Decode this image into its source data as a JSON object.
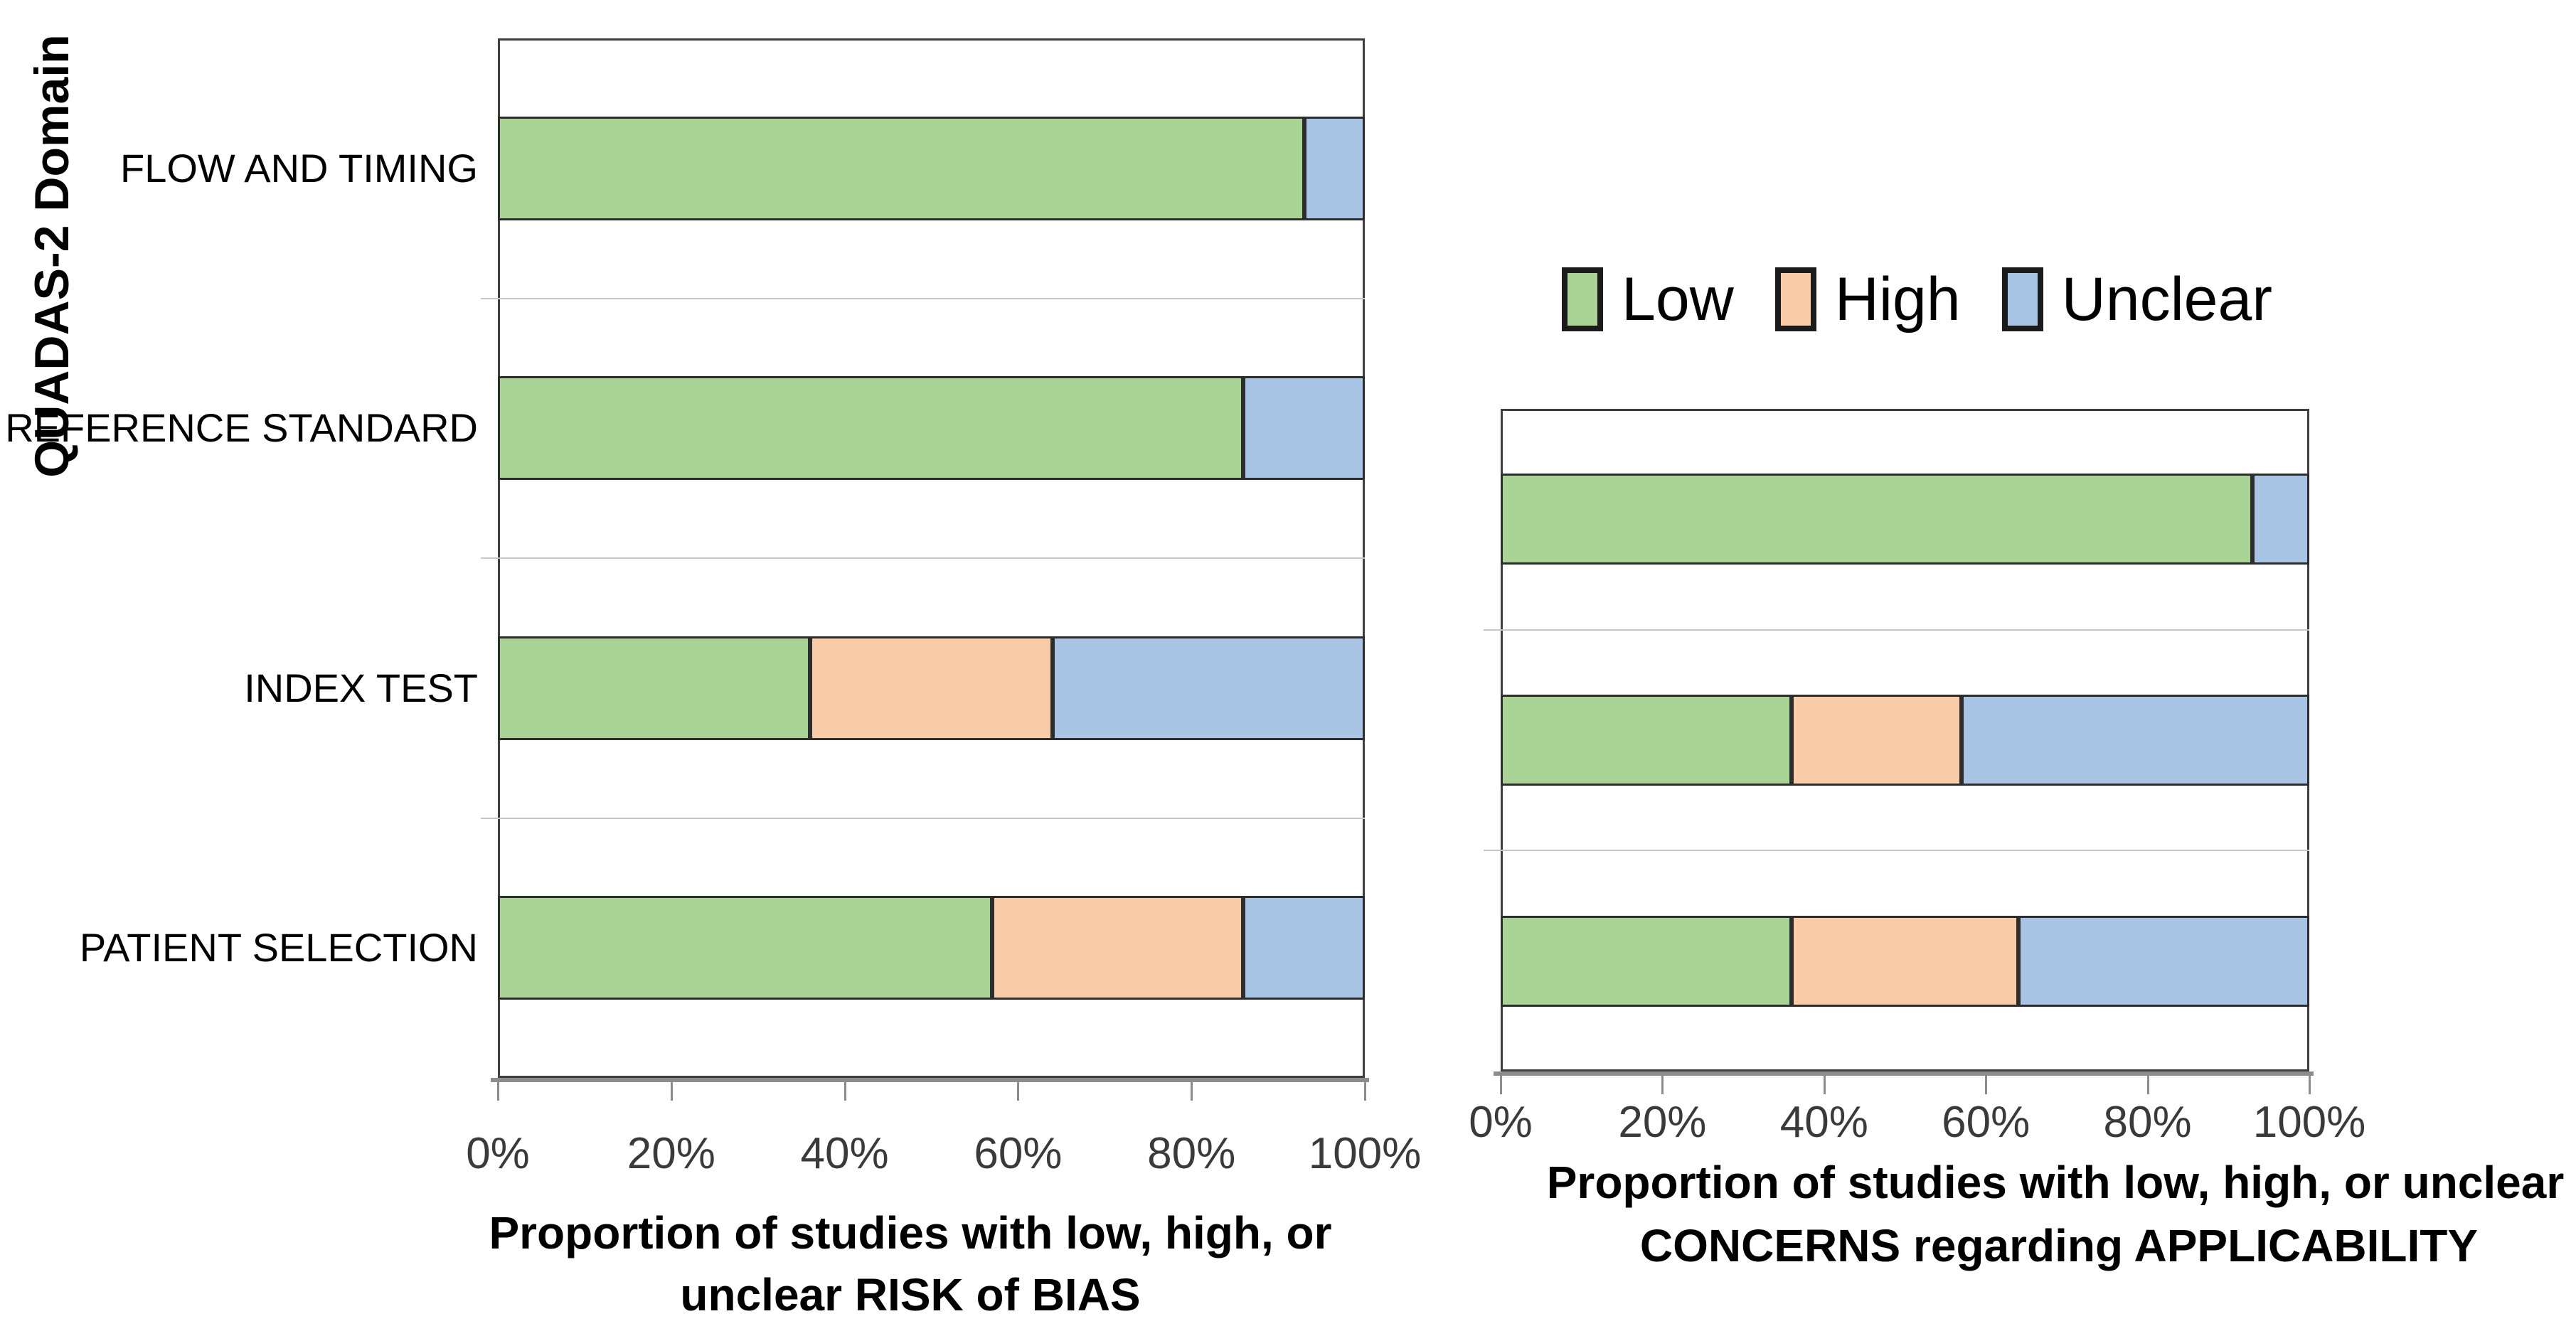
{
  "legend": {
    "items": [
      {
        "name": "Low",
        "label": "Low",
        "color": "#A9D395"
      },
      {
        "name": "High",
        "label": "High",
        "color": "#F9CBA6"
      },
      {
        "name": "Unclear",
        "label": "Unclear",
        "color": "#A8C5E6"
      }
    ]
  },
  "chart_data": [
    {
      "id": "risk-of-bias",
      "type": "bar",
      "stacked": true,
      "orientation": "horizontal",
      "ylabel": "QUADAS-2 Domain",
      "categories": [
        "FLOW AND TIMING",
        "REFERENCE STANDARD",
        "INDEX TEST",
        "PATIENT SELECTION"
      ],
      "series": [
        {
          "name": "Low",
          "values": [
            93,
            86,
            36,
            57
          ]
        },
        {
          "name": "High",
          "values": [
            0,
            0,
            28,
            29
          ]
        },
        {
          "name": "Unclear",
          "values": [
            7,
            14,
            36,
            14
          ]
        }
      ],
      "x_ticks": [
        "0%",
        "20%",
        "40%",
        "60%",
        "80%",
        "100%"
      ],
      "xlim": [
        0,
        100
      ],
      "xlabel_lines": [
        "Proportion of studies with low, high, or",
        "unclear RISK of BIAS"
      ],
      "grid": "horizontal-row-separators",
      "legend_position": "above-right-chart"
    },
    {
      "id": "applicability-concerns",
      "type": "bar",
      "stacked": true,
      "orientation": "horizontal",
      "ylabel": "",
      "categories": [
        "REFERENCE STANDARD",
        "INDEX TEST",
        "PATIENT SELECTION"
      ],
      "series": [
        {
          "name": "Low",
          "values": [
            93,
            36,
            36
          ]
        },
        {
          "name": "High",
          "values": [
            0,
            21,
            28
          ]
        },
        {
          "name": "Unclear",
          "values": [
            7,
            43,
            36
          ]
        }
      ],
      "x_ticks": [
        "0%",
        "20%",
        "40%",
        "60%",
        "80%",
        "100%"
      ],
      "xlim": [
        0,
        100
      ],
      "xlabel_lines": [
        "Proportion of studies with low, high, or unclear",
        "CONCERNS regarding APPLICABILITY"
      ],
      "grid": "horizontal-row-separators",
      "legend_position": "none"
    }
  ]
}
